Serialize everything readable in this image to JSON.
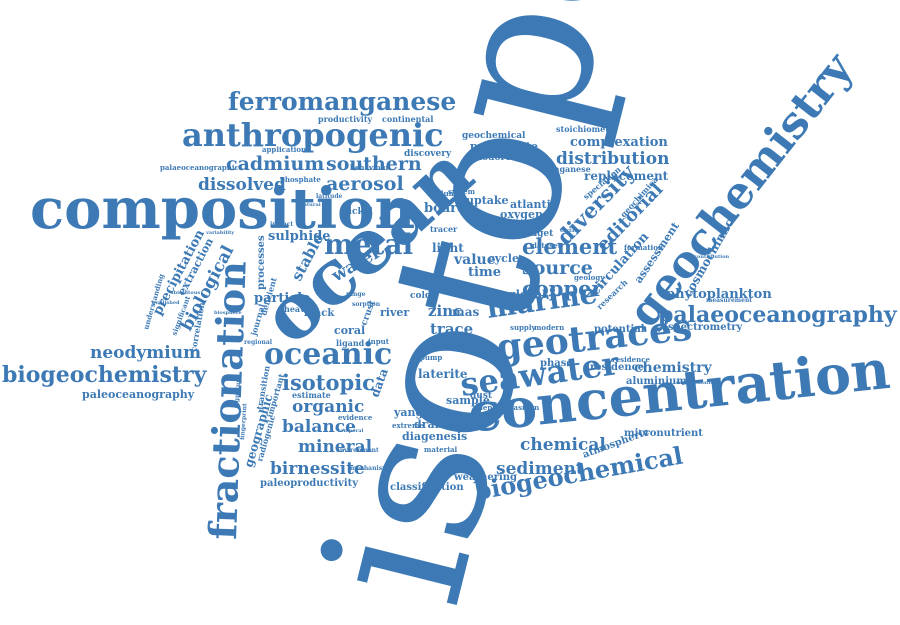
{
  "words": {
    "isotope": "isotope",
    "ocean": "ocean",
    "composition": "composition",
    "concentration": "concentration",
    "geochemistry": "geochemistry",
    "fractionation": "fractionation",
    "anthropogenic": "anthropogenic",
    "ferromanganese": "ferromanganese",
    "geotraces": "geotraces",
    "seawater": "seawater",
    "biogeochemistry": "biogeochemistry",
    "biogeochemical": "biogeochemical",
    "palaeoceanography": "palaeoceanography",
    "oceanic": "oceanic",
    "marine": "marine",
    "metal": "metal",
    "cadmium": "cadmium",
    "southern": "southern",
    "aerosol": "aerosol",
    "dissolved": "dissolved",
    "distribution": "distribution",
    "complexation": "complexation",
    "element": "element",
    "source": "source",
    "copper": "copper",
    "diversity": "diversity",
    "editorial": "editorial",
    "neodymium": "neodymium",
    "isotopic": "isotopic",
    "organic": "organic",
    "balance": "balance",
    "mineral": "mineral",
    "birnessite": "birnessite",
    "sediment": "sediment",
    "chemical": "chemical",
    "phytoplankton": "phytoplankton",
    "biological": "biological",
    "paleoceanography": "paleoceanography",
    "paleoproductivity": "paleoproductivity",
    "micronutrient": "micronutrient",
    "chemistry": "chemistry",
    "residence": "residence",
    "water": "water",
    "zinc": "zinc",
    "trace": "trace",
    "particle": "particle",
    "precipitation": "precipitation",
    "extraction": "extraction",
    "sulphide": "sulphide",
    "stable": "stable",
    "geographic": "geographic",
    "laterite": "laterite",
    "sample": "sample",
    "diagenesis": "diagenesis",
    "drainage": "drainage",
    "yangtze": "yangtze",
    "weathering": "weathering",
    "classification": "classification",
    "atmospheric": "atmospheric",
    "aluminium": "aluminium",
    "spectrometry": "spectrometry",
    "cosmochimica": "cosmochimica",
    "circulation": "circulation",
    "assessment": "assessment",
    "value": "value",
    "time": "time",
    "light": "light",
    "cycle": "cycle",
    "oxygen": "oxygen",
    "board": "board",
    "uptake": "uptake",
    "atlantic": "atlantic",
    "particulate": "particulate",
    "todorokite": "todorokite",
    "geochemical": "geochemical",
    "productivity": "productivity",
    "continental": "continental",
    "discovery": "discovery",
    "nickel": "nickel",
    "phosphate": "phosphate",
    "application": "application",
    "palaeoceanographic": "palaeoceanographic",
    "stoichiometry": "stoichiometry",
    "manganese": "manganese",
    "speciation": "speciation",
    "replacement": "replacement",
    "processes": "processes",
    "coral": "coral",
    "black": "black",
    "river": "river",
    "crust": "crust",
    "global": "global",
    "potential": "potential",
    "supply": "supply",
    "modern": "modern",
    "phase": "phase",
    "dust": "dust",
    "deposit": "deposit",
    "plasmon": "plasmon",
    "estimate": "estimate",
    "evidence": "evidence",
    "radiogenic": "radiogenic",
    "correlation": "correlation",
    "significant": "significant",
    "understanding": "understanding",
    "heavy": "heavy",
    "tracer": "tracer",
    "budget": "budget",
    "dataset": "dataset",
    "research": "research",
    "geology": "geology",
    "geochimica": "geochimica",
    "formation": "formation",
    "extreme": "extreme",
    "material": "material",
    "environment": "environment",
    "mechanism": "mechanism",
    "deficient": "deficient",
    "journal": "journal",
    "important": "important",
    "transition": "transition",
    "fingerprint": "fingerprint",
    "signature": "signature",
    "regional": "regional",
    "input": "input",
    "ligand": "ligand",
    "range": "range",
    "sorption": "sorption",
    "behaviour": "behaviour",
    "system": "system",
    "column": "column",
    "latitude": "latitude",
    "cold": "cold",
    "pump": "pump",
    "data": "data",
    "mas": "mas",
    "measurement": "measurement",
    "representation": "representation",
    "ubiquitous": "ubiquitous",
    "variability": "variability",
    "residence2": "residence",
    "impact": "impact",
    "contribution": "contribution",
    "temporal": "temporal",
    "natural": "natural",
    "published": "published",
    "biosphere": "biosphere",
    "surface": "surface"
  },
  "brand_color": "#3d7ab5"
}
